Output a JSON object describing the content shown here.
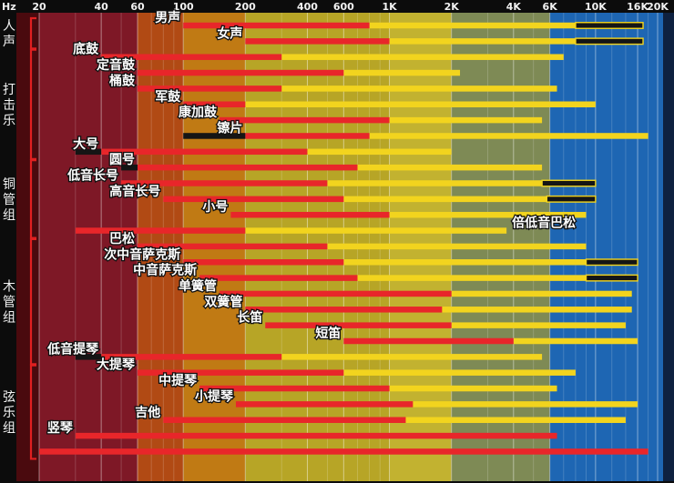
{
  "chart_data": {
    "type": "bar",
    "title": "",
    "xlabel": "Hz",
    "ylabel": "",
    "x_scale": "log",
    "xlim": [
      20,
      20000
    ],
    "ticks": [
      {
        "v": 20,
        "label": "20"
      },
      {
        "v": 40,
        "label": "40"
      },
      {
        "v": 60,
        "label": "60"
      },
      {
        "v": 100,
        "label": "100"
      },
      {
        "v": 200,
        "label": "200"
      },
      {
        "v": 400,
        "label": "400"
      },
      {
        "v": 600,
        "label": "600"
      },
      {
        "v": 1000,
        "label": "1K"
      },
      {
        "v": 2000,
        "label": "2K"
      },
      {
        "v": 4000,
        "label": "4K"
      },
      {
        "v": 6000,
        "label": "6K"
      },
      {
        "v": 10000,
        "label": "10K"
      },
      {
        "v": 16000,
        "label": "16K"
      },
      {
        "v": 20000,
        "label": "20K"
      }
    ],
    "band_colors": [
      {
        "from": 16,
        "to": 20,
        "color": "#4a0a0e"
      },
      {
        "from": 20,
        "to": 60,
        "color": "#7e1826"
      },
      {
        "from": 60,
        "to": 100,
        "color": "#b14a14"
      },
      {
        "from": 100,
        "to": 200,
        "color": "#c07a14"
      },
      {
        "from": 200,
        "to": 1000,
        "color": "#b7a526"
      },
      {
        "from": 1000,
        "to": 2000,
        "color": "#c2b230"
      },
      {
        "from": 2000,
        "to": 6000,
        "color": "#7e8a55"
      },
      {
        "from": 6000,
        "to": 20000,
        "color": "#1e66b3"
      }
    ],
    "groups": [
      {
        "label": "人声",
        "from": 0,
        "to": 1
      },
      {
        "label": "打击乐",
        "from": 2,
        "to": 8
      },
      {
        "label": "铜管组",
        "from": 9,
        "to": 13
      },
      {
        "label": "木管组",
        "from": 14,
        "to": 21
      },
      {
        "label": "弦乐组",
        "from": 22,
        "to": 27
      }
    ],
    "instruments": [
      {
        "name": "男声",
        "fundamental": [
          100,
          800
        ],
        "harmonics": [
          800,
          16000
        ],
        "low_extension": [],
        "high_extension": [
          8000,
          17000
        ]
      },
      {
        "name": "女声",
        "fundamental": [
          200,
          1000
        ],
        "harmonics": [
          1000,
          17000
        ],
        "low_extension": [],
        "high_extension": [
          8000,
          17000
        ]
      },
      {
        "name": "底鼓",
        "fundamental": [
          40,
          300
        ],
        "harmonics": [
          300,
          7000
        ],
        "low_extension": [],
        "high_extension": []
      },
      {
        "name": "定音鼓",
        "fundamental": [
          60,
          600
        ],
        "harmonics": [
          600,
          2200
        ],
        "low_extension": [],
        "high_extension": []
      },
      {
        "name": "桶鼓",
        "fundamental": [
          60,
          300
        ],
        "harmonics": [
          300,
          6500
        ],
        "low_extension": [],
        "high_extension": []
      },
      {
        "name": "军鼓",
        "fundamental": [
          100,
          200
        ],
        "harmonics": [
          200,
          10000
        ],
        "low_extension": [],
        "high_extension": []
      },
      {
        "name": "康加鼓",
        "fundamental": [
          150,
          1000
        ],
        "harmonics": [
          1000,
          5500
        ],
        "low_extension": [],
        "high_extension": []
      },
      {
        "name": "镲片",
        "fundamental": [
          200,
          800
        ],
        "harmonics": [
          800,
          18000
        ],
        "low_extension": [
          100,
          200
        ],
        "high_extension": []
      },
      {
        "name": "大号",
        "fundamental": [
          40,
          400
        ],
        "harmonics": [
          400,
          2000
        ],
        "low_extension": [
          30,
          40
        ],
        "high_extension": []
      },
      {
        "name": "圆号",
        "fundamental": [
          60,
          700
        ],
        "harmonics": [
          700,
          5500
        ],
        "low_extension": [
          50,
          60
        ],
        "high_extension": []
      },
      {
        "name": "低音长号",
        "fundamental": [
          50,
          500
        ],
        "harmonics": [
          500,
          5500
        ],
        "low_extension": [],
        "high_extension": [
          5500,
          10000
        ]
      },
      {
        "name": "高音长号",
        "fundamental": [
          80,
          600
        ],
        "harmonics": [
          600,
          10000
        ],
        "low_extension": [],
        "high_extension": [
          5800,
          10000
        ]
      },
      {
        "name": "小号",
        "fundamental": [
          170,
          1000
        ],
        "harmonics": [
          1000,
          9000
        ],
        "low_extension": [],
        "high_extension": []
      },
      {
        "name": "倍低音巴松",
        "fundamental": [
          30,
          200
        ],
        "harmonics": [
          200,
          3700
        ],
        "low_extension": [],
        "high_extension": []
      },
      {
        "name": "巴松",
        "fundamental": [
          60,
          500
        ],
        "harmonics": [
          500,
          9000
        ],
        "low_extension": [],
        "high_extension": []
      },
      {
        "name": "次中音萨克斯",
        "fundamental": [
          100,
          600
        ],
        "harmonics": [
          600,
          16000
        ],
        "low_extension": [],
        "high_extension": [
          9000,
          16000
        ]
      },
      {
        "name": "中音萨克斯",
        "fundamental": [
          120,
          700
        ],
        "harmonics": [
          700,
          16000
        ],
        "low_extension": [],
        "high_extension": [
          9000,
          16000
        ]
      },
      {
        "name": "单簧管",
        "fundamental": [
          150,
          2000
        ],
        "harmonics": [
          2000,
          15000
        ],
        "low_extension": [],
        "high_extension": []
      },
      {
        "name": "双簧管",
        "fundamental": [
          200,
          1800
        ],
        "harmonics": [
          1800,
          15000
        ],
        "low_extension": [],
        "high_extension": []
      },
      {
        "name": "长笛",
        "fundamental": [
          250,
          2000
        ],
        "harmonics": [
          2000,
          14000
        ],
        "low_extension": [],
        "high_extension": []
      },
      {
        "name": "短笛",
        "fundamental": [
          600,
          4000
        ],
        "harmonics": [
          4000,
          16000
        ],
        "low_extension": [],
        "high_extension": []
      },
      {
        "name": "低音提琴",
        "fundamental": [
          40,
          300
        ],
        "harmonics": [
          300,
          5500
        ],
        "low_extension": [
          30,
          40
        ],
        "high_extension": []
      },
      {
        "name": "大提琴",
        "fundamental": [
          60,
          600
        ],
        "harmonics": [
          600,
          8000
        ],
        "low_extension": [],
        "high_extension": []
      },
      {
        "name": "中提琴",
        "fundamental": [
          120,
          1000
        ],
        "harmonics": [
          1000,
          6500
        ],
        "low_extension": [],
        "high_extension": []
      },
      {
        "name": "小提琴",
        "fundamental": [
          180,
          1300
        ],
        "harmonics": [
          1300,
          16000
        ],
        "low_extension": [],
        "high_extension": []
      },
      {
        "name": "吉他",
        "fundamental": [
          80,
          1200
        ],
        "harmonics": [
          1200,
          14000
        ],
        "low_extension": [],
        "high_extension": []
      },
      {
        "name": "竖琴",
        "fundamental": [
          30,
          6500
        ],
        "harmonics": [],
        "low_extension": [],
        "high_extension": []
      },
      {
        "name": "",
        "fundamental": [
          20,
          18000
        ],
        "harmonics": [],
        "low_extension": [],
        "high_extension": []
      }
    ],
    "legend": {
      "fundamental": "#e8262a",
      "harmonics": "#f2d41e",
      "extension": "#151515"
    }
  }
}
